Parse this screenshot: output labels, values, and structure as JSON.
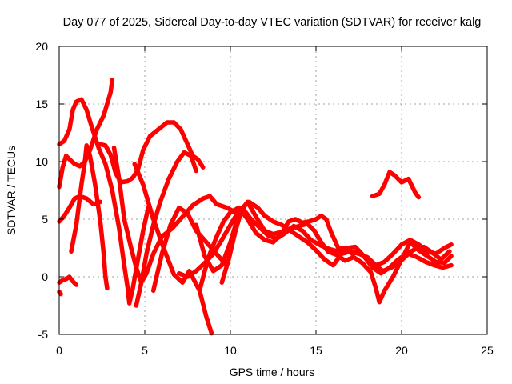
{
  "chart_data": {
    "type": "scatter",
    "title": "Day 077 of 2025, Sidereal Day-to-day VTEC variation (SDTVAR) for receiver kalg",
    "xlabel": "GPS time / hours",
    "ylabel": "SDTVAR / TECUs",
    "xlim": [
      0,
      25
    ],
    "ylim": [
      -5,
      20
    ],
    "xticks": [
      "0",
      "5",
      "10",
      "15",
      "20",
      "25"
    ],
    "yticks": [
      "-5",
      "0",
      "5",
      "10",
      "15",
      "20"
    ],
    "grid": true,
    "marker": "+",
    "color": "#ff0000",
    "series": [
      {
        "name": "s1",
        "points": [
          [
            0.0,
            11.5
          ],
          [
            0.3,
            11.8
          ],
          [
            0.6,
            12.8
          ],
          [
            0.8,
            14.5
          ],
          [
            1.0,
            15.2
          ],
          [
            1.3,
            15.4
          ],
          [
            1.6,
            14.5
          ],
          [
            1.9,
            13.0
          ],
          [
            2.3,
            11.2
          ],
          [
            2.7,
            9.8
          ],
          [
            3.1,
            7.5
          ],
          [
            3.5,
            4.2
          ],
          [
            3.8,
            1.0
          ],
          [
            4.0,
            -1.0
          ],
          [
            4.1,
            -2.3
          ],
          [
            4.3,
            -1.0
          ],
          [
            4.6,
            1.5
          ],
          [
            4.9,
            4.0
          ],
          [
            5.2,
            6.0
          ]
        ]
      },
      {
        "name": "s2",
        "points": [
          [
            0.0,
            7.8
          ],
          [
            0.2,
            9.5
          ],
          [
            0.4,
            10.5
          ],
          [
            0.6,
            10.2
          ],
          [
            0.9,
            9.8
          ],
          [
            1.2,
            9.6
          ],
          [
            1.5,
            10.0
          ],
          [
            1.8,
            11.0
          ],
          [
            2.2,
            12.8
          ],
          [
            2.6,
            14.0
          ],
          [
            3.0,
            16.0
          ],
          [
            3.1,
            17.1
          ]
        ]
      },
      {
        "name": "s3",
        "points": [
          [
            0.7,
            2.2
          ],
          [
            1.0,
            4.5
          ],
          [
            1.3,
            8.0
          ],
          [
            1.5,
            10.0
          ],
          [
            1.6,
            11.4
          ],
          [
            1.8,
            10.5
          ],
          [
            2.1,
            8.0
          ],
          [
            2.4,
            4.8
          ],
          [
            2.6,
            2.0
          ],
          [
            2.7,
            0.0
          ],
          [
            2.8,
            -1.0
          ]
        ]
      },
      {
        "name": "s4",
        "points": [
          [
            0.0,
            4.8
          ],
          [
            0.3,
            5.3
          ],
          [
            0.6,
            6.0
          ],
          [
            0.9,
            6.8
          ],
          [
            1.2,
            7.0
          ],
          [
            1.6,
            6.8
          ],
          [
            2.0,
            6.3
          ],
          [
            2.4,
            6.5
          ]
        ]
      },
      {
        "name": "s5",
        "points": [
          [
            2.4,
            11.5
          ],
          [
            2.7,
            11.4
          ],
          [
            3.0,
            10.6
          ],
          [
            3.3,
            9.0
          ],
          [
            3.6,
            8.2
          ],
          [
            4.0,
            8.3
          ],
          [
            4.3,
            8.6
          ],
          [
            4.6,
            9.3
          ],
          [
            4.9,
            11.0
          ],
          [
            5.3,
            12.2
          ],
          [
            5.8,
            12.8
          ],
          [
            6.3,
            13.4
          ],
          [
            6.7,
            13.4
          ],
          [
            7.1,
            12.8
          ],
          [
            7.5,
            11.5
          ],
          [
            7.8,
            10.5
          ],
          [
            8.1,
            10.2
          ],
          [
            8.4,
            9.5
          ]
        ]
      },
      {
        "name": "s6",
        "points": [
          [
            3.2,
            11.2
          ],
          [
            3.5,
            8.5
          ],
          [
            3.8,
            5.0
          ],
          [
            4.2,
            2.5
          ],
          [
            4.5,
            0.8
          ],
          [
            4.8,
            -0.5
          ],
          [
            5.1,
            0.3
          ],
          [
            5.5,
            2.0
          ],
          [
            6.0,
            3.5
          ],
          [
            6.6,
            4.2
          ],
          [
            7.2,
            5.2
          ],
          [
            7.8,
            6.2
          ],
          [
            8.4,
            6.8
          ],
          [
            8.8,
            7.0
          ],
          [
            9.2,
            6.3
          ],
          [
            9.8,
            6.0
          ],
          [
            10.4,
            5.5
          ]
        ]
      },
      {
        "name": "s7",
        "points": [
          [
            4.5,
            -2.5
          ],
          [
            4.8,
            -0.5
          ],
          [
            5.1,
            2.0
          ],
          [
            5.5,
            4.5
          ],
          [
            5.9,
            6.5
          ],
          [
            6.4,
            8.5
          ],
          [
            6.9,
            10.0
          ],
          [
            7.3,
            10.8
          ],
          [
            7.7,
            10.5
          ],
          [
            8.0,
            9.2
          ]
        ]
      },
      {
        "name": "s8",
        "points": [
          [
            5.5,
            -1.2
          ],
          [
            6.0,
            2.0
          ],
          [
            6.5,
            4.5
          ],
          [
            7.0,
            6.0
          ],
          [
            7.5,
            5.5
          ],
          [
            8.0,
            4.0
          ],
          [
            8.6,
            3.0
          ],
          [
            9.3,
            1.8
          ],
          [
            9.8,
            1.0
          ]
        ]
      },
      {
        "name": "s9",
        "points": [
          [
            4.4,
            9.8
          ],
          [
            4.9,
            8.0
          ],
          [
            5.5,
            5.0
          ],
          [
            6.1,
            2.5
          ],
          [
            6.7,
            0.2
          ],
          [
            7.2,
            -0.5
          ],
          [
            7.6,
            0.5
          ],
          [
            8.2,
            -1.2
          ],
          [
            8.6,
            -3.5
          ],
          [
            8.9,
            -4.9
          ]
        ]
      },
      {
        "name": "s10",
        "points": [
          [
            7.0,
            0.3
          ],
          [
            7.5,
            0.0
          ],
          [
            8.0,
            0.5
          ],
          [
            8.5,
            1.2
          ],
          [
            9.0,
            2.0
          ],
          [
            9.5,
            3.2
          ],
          [
            10.0,
            4.5
          ],
          [
            10.4,
            5.5
          ],
          [
            10.8,
            5.8
          ],
          [
            11.2,
            5.0
          ],
          [
            11.7,
            4.3
          ],
          [
            12.2,
            3.6
          ],
          [
            12.7,
            3.3
          ],
          [
            13.2,
            3.8
          ],
          [
            13.7,
            4.4
          ],
          [
            14.2,
            4.0
          ],
          [
            14.7,
            3.2
          ],
          [
            15.3,
            2.7
          ],
          [
            15.8,
            2.4
          ],
          [
            16.3,
            2.2
          ],
          [
            16.8,
            2.5
          ],
          [
            17.3,
            2.6
          ],
          [
            17.8,
            1.8
          ],
          [
            18.3,
            0.8
          ],
          [
            18.8,
            0.3
          ],
          [
            19.3,
            0.8
          ],
          [
            19.8,
            1.5
          ],
          [
            20.3,
            2.0
          ],
          [
            20.8,
            2.4
          ],
          [
            21.3,
            2.6
          ],
          [
            21.8,
            2.1
          ],
          [
            22.3,
            1.5
          ],
          [
            22.8,
            2.2
          ]
        ]
      },
      {
        "name": "s11",
        "points": [
          [
            8.0,
            4.5
          ],
          [
            8.5,
            1.8
          ],
          [
            9.0,
            0.5
          ],
          [
            9.5,
            1.0
          ],
          [
            10.0,
            3.0
          ],
          [
            10.5,
            5.5
          ],
          [
            11.0,
            6.5
          ],
          [
            11.5,
            5.2
          ],
          [
            12.0,
            4.0
          ],
          [
            12.5,
            3.7
          ],
          [
            13.0,
            3.9
          ],
          [
            13.5,
            4.2
          ],
          [
            14.0,
            4.4
          ],
          [
            14.5,
            4.6
          ],
          [
            14.9,
            4.0
          ],
          [
            15.3,
            3.0
          ],
          [
            15.7,
            2.2
          ],
          [
            16.2,
            1.9
          ],
          [
            16.7,
            1.4
          ],
          [
            17.2,
            1.7
          ],
          [
            17.7,
            1.2
          ],
          [
            18.2,
            0.4
          ],
          [
            18.5,
            -1.0
          ],
          [
            18.7,
            -2.2
          ],
          [
            19.0,
            -1.2
          ],
          [
            19.5,
            0.0
          ],
          [
            20.0,
            1.5
          ],
          [
            20.5,
            3.0
          ],
          [
            21.0,
            2.3
          ],
          [
            21.5,
            1.8
          ],
          [
            22.0,
            1.3
          ],
          [
            22.5,
            1.2
          ],
          [
            22.9,
            1.8
          ]
        ]
      },
      {
        "name": "s12",
        "points": [
          [
            9.5,
            -0.5
          ],
          [
            9.9,
            1.5
          ],
          [
            10.3,
            4.0
          ],
          [
            10.7,
            6.0
          ],
          [
            11.1,
            6.5
          ],
          [
            11.6,
            6.0
          ],
          [
            12.0,
            5.3
          ],
          [
            12.5,
            4.8
          ],
          [
            13.0,
            4.5
          ],
          [
            13.5,
            4.0
          ],
          [
            14.0,
            3.5
          ],
          [
            14.5,
            3.0
          ],
          [
            15.0,
            2.3
          ],
          [
            15.5,
            1.5
          ],
          [
            16.0,
            1.0
          ],
          [
            16.5,
            2.0
          ],
          [
            17.0,
            2.2
          ],
          [
            17.5,
            2.0
          ],
          [
            18.0,
            1.7
          ],
          [
            18.5,
            1.0
          ],
          [
            19.0,
            1.3
          ],
          [
            19.5,
            2.0
          ],
          [
            20.0,
            2.8
          ],
          [
            20.5,
            3.2
          ],
          [
            21.0,
            2.8
          ],
          [
            21.5,
            2.2
          ],
          [
            22.0,
            2.0
          ],
          [
            22.5,
            2.5
          ],
          [
            22.9,
            2.8
          ]
        ]
      },
      {
        "name": "s13",
        "points": [
          [
            8.2,
            -1.2
          ],
          [
            8.5,
            0.5
          ],
          [
            8.8,
            2.0
          ],
          [
            9.2,
            3.5
          ],
          [
            9.6,
            4.8
          ],
          [
            10.0,
            5.6
          ],
          [
            10.5,
            6.0
          ],
          [
            11.0,
            5.0
          ],
          [
            11.5,
            3.8
          ],
          [
            12.0,
            3.2
          ],
          [
            12.5,
            3.0
          ],
          [
            13.0,
            3.8
          ],
          [
            13.4,
            4.8
          ],
          [
            13.8,
            5.0
          ],
          [
            14.2,
            4.7
          ],
          [
            14.6,
            4.8
          ],
          [
            15.0,
            5.0
          ],
          [
            15.3,
            5.3
          ],
          [
            15.6,
            5.0
          ],
          [
            15.9,
            3.8
          ],
          [
            16.3,
            2.5
          ],
          [
            16.7,
            2.5
          ],
          [
            17.1,
            2.0
          ],
          [
            17.5,
            2.2
          ],
          [
            17.9,
            1.6
          ],
          [
            18.4,
            1.1
          ],
          [
            18.9,
            0.5
          ],
          [
            19.4,
            0.8
          ],
          [
            19.9,
            1.3
          ],
          [
            20.4,
            2.0
          ],
          [
            20.9,
            1.7
          ],
          [
            21.4,
            1.3
          ],
          [
            21.9,
            1.0
          ],
          [
            22.4,
            0.8
          ],
          [
            22.9,
            1.0
          ]
        ]
      },
      {
        "name": "s14",
        "points": [
          [
            18.3,
            7.0
          ],
          [
            18.7,
            7.2
          ],
          [
            19.0,
            8.0
          ],
          [
            19.3,
            9.1
          ],
          [
            19.6,
            8.8
          ],
          [
            20.0,
            8.2
          ],
          [
            20.4,
            8.5
          ],
          [
            20.8,
            7.3
          ],
          [
            21.0,
            6.9
          ]
        ]
      },
      {
        "name": "s15",
        "points": [
          [
            0.0,
            -0.5
          ],
          [
            0.2,
            -0.3
          ],
          [
            0.4,
            -0.2
          ],
          [
            0.6,
            0.0
          ],
          [
            0.8,
            -0.4
          ],
          [
            1.0,
            -0.7
          ]
        ]
      },
      {
        "name": "s16",
        "points": [
          [
            0.0,
            -1.3
          ],
          [
            0.1,
            -1.5
          ]
        ]
      }
    ]
  }
}
